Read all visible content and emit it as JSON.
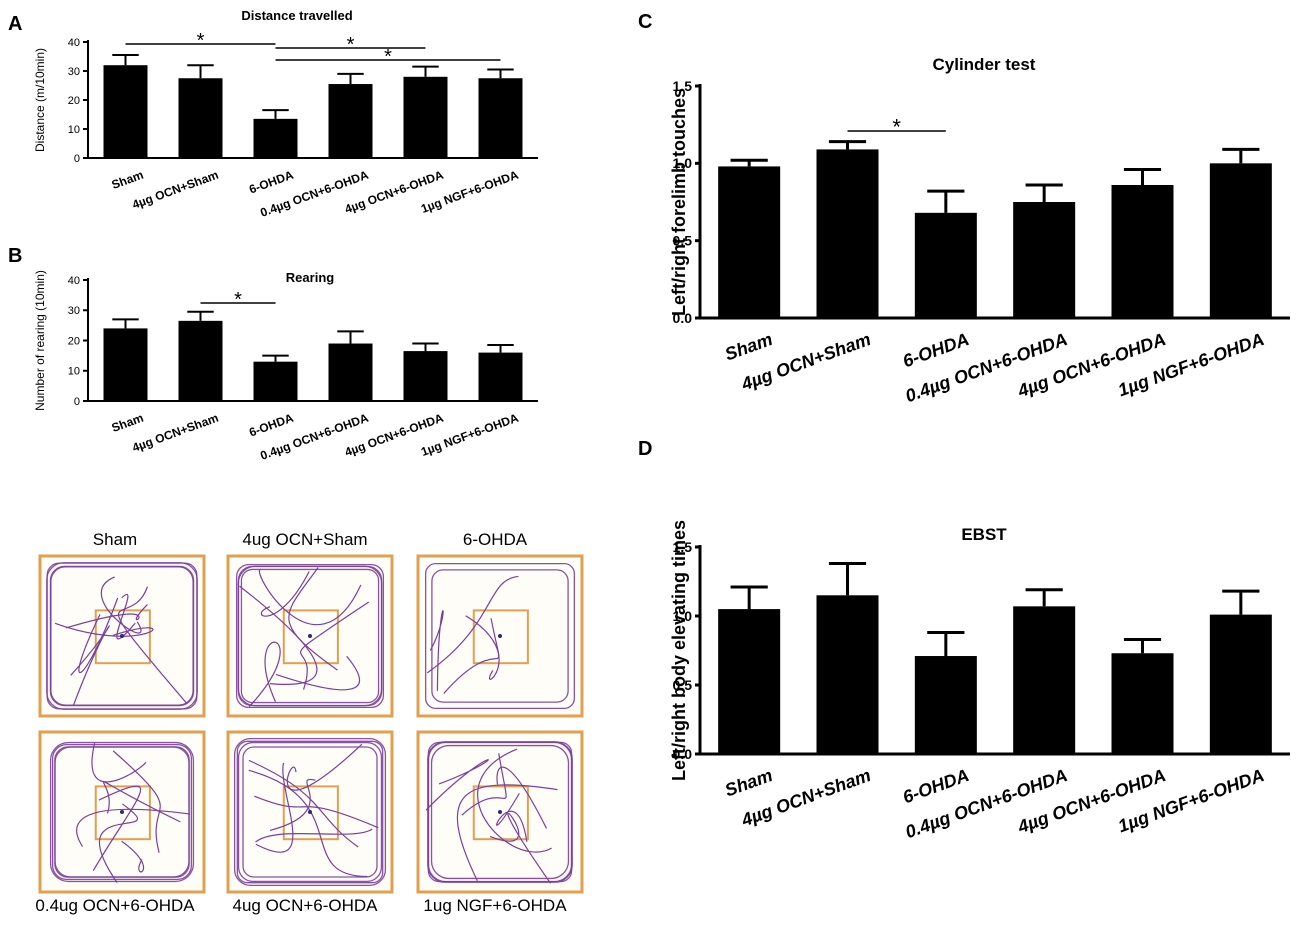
{
  "chart_data": [
    {
      "panel": "A",
      "type": "bar",
      "title": "Distance travelled",
      "ylabel": "Distance (m/10min)",
      "xlabel": "",
      "categories": [
        "Sham",
        "4µg OCN+Sham",
        "6-OHDA",
        "0.4µg OCN+6-OHDA",
        "4µg OCN+6-OHDA",
        "1µg NGF+6-OHDA"
      ],
      "values": [
        32,
        27.5,
        13.5,
        25.5,
        28,
        27.5
      ],
      "errors": [
        3.5,
        4.5,
        3,
        3.5,
        3.5,
        3
      ],
      "yticks": [
        "0",
        "10",
        "20",
        "30",
        "40"
      ],
      "ylim": [
        0,
        40
      ],
      "significance": [
        {
          "from": 0,
          "to": 2,
          "label": "*"
        },
        {
          "from": 2,
          "to": 4,
          "label": "*"
        },
        {
          "from": 2,
          "to": 5,
          "label": "*"
        }
      ]
    },
    {
      "panel": "B",
      "type": "bar",
      "title": "Rearing",
      "ylabel": "Number of rearing (10min)",
      "xlabel": "",
      "categories": [
        "Sham",
        "4µg OCN+Sham",
        "6-OHDA",
        "0.4µg OCN+6-OHDA",
        "4µg OCN+6-OHDA",
        "1µg NGF+6-OHDA"
      ],
      "values": [
        24,
        26.5,
        13,
        19,
        16.5,
        16
      ],
      "errors": [
        3,
        3,
        2,
        4,
        2.5,
        2.5
      ],
      "yticks": [
        "0",
        "10",
        "20",
        "30",
        "40"
      ],
      "ylim": [
        0,
        40
      ],
      "significance": [
        {
          "from": 1,
          "to": 2,
          "label": "*"
        }
      ]
    },
    {
      "panel": "C",
      "type": "bar",
      "title": "Cylinder test",
      "ylabel": "Left/right forelimb touches",
      "xlabel": "",
      "categories": [
        "Sham",
        "4µg OCN+Sham",
        "6-OHDA",
        "0.4µg OCN+6-OHDA",
        "4µg OCN+6-OHDA",
        "1µg NGF+6-OHDA"
      ],
      "values": [
        0.98,
        1.09,
        0.68,
        0.75,
        0.86,
        1.0
      ],
      "errors": [
        0.04,
        0.05,
        0.14,
        0.11,
        0.1,
        0.09
      ],
      "yticks": [
        "0.0",
        "0.5",
        "1.0",
        "1.5"
      ],
      "ylim": [
        0,
        1.5
      ],
      "significance": [
        {
          "from": 1,
          "to": 2,
          "label": "*"
        }
      ]
    },
    {
      "panel": "D",
      "type": "bar",
      "title": "EBST",
      "ylabel": "Left/right body elevating times",
      "xlabel": "",
      "categories": [
        "Sham",
        "4µg OCN+Sham",
        "6-OHDA",
        "0.4µg OCN+6-OHDA",
        "4µg OCN+6-OHDA",
        "1µg NGF+6-OHDA"
      ],
      "values": [
        1.05,
        1.15,
        0.71,
        1.07,
        0.73,
        1.01
      ],
      "errors": [
        0.16,
        0.23,
        0.17,
        0.12,
        0.1,
        0.17
      ],
      "yticks": [
        "0.0",
        "0.5",
        "1.0",
        "1.5"
      ],
      "ylim": [
        0,
        1.5
      ],
      "significance": []
    }
  ],
  "track_panel": {
    "top_labels": [
      "Sham",
      "4ug OCN+Sham",
      "6-OHDA"
    ],
    "bottom_labels": [
      "0.4ug OCN+6-OHDA",
      "4ug OCN+6-OHDA",
      "1ug NGF+6-OHDA"
    ]
  },
  "colors": {
    "bar": "#000000",
    "track_path": "#7b3f9c",
    "arena_border": "#e0a050"
  }
}
